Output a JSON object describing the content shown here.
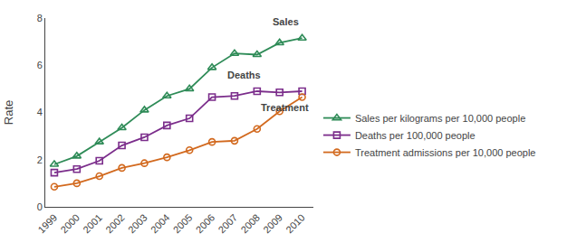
{
  "chart_data": {
    "type": "line",
    "x": [
      1999,
      2000,
      2001,
      2002,
      2003,
      2004,
      2005,
      2006,
      2007,
      2008,
      2009,
      2010
    ],
    "series": [
      {
        "name": "Sales per kilograms per 10,000 people",
        "color": "#2e8b57",
        "marker": "triangle-up",
        "values": [
          1.8,
          2.15,
          2.75,
          3.35,
          4.1,
          4.7,
          5.0,
          5.9,
          6.5,
          6.45,
          6.95,
          7.15
        ]
      },
      {
        "name": "Deaths per 100,000 people",
        "color": "#7b2d8b",
        "marker": "square",
        "values": [
          1.45,
          1.6,
          1.95,
          2.6,
          2.95,
          3.45,
          3.75,
          4.65,
          4.7,
          4.9,
          4.85,
          4.9
        ]
      },
      {
        "name": "Treatment admissions per 10,000 people",
        "color": "#d2691e",
        "marker": "circle",
        "values": [
          0.85,
          1.0,
          1.3,
          1.65,
          1.85,
          2.1,
          2.4,
          2.75,
          2.8,
          3.3,
          4.05,
          4.65
        ]
      }
    ],
    "annotations": [
      {
        "text": "Sales",
        "x": 2008.6,
        "y": 7.55
      },
      {
        "text": "Deaths",
        "x": 2006.6,
        "y": 5.3
      },
      {
        "text": "Treatment",
        "x": 2008.1,
        "y": 3.9
      }
    ],
    "ylabel": "Rate",
    "xlim": [
      1998.6,
      2010.5
    ],
    "xticks": [
      1999,
      2000,
      2001,
      2002,
      2003,
      2004,
      2005,
      2006,
      2007,
      2008,
      2009,
      2010
    ],
    "ylim": [
      0,
      8
    ],
    "yticks": [
      0,
      2,
      4,
      6,
      8
    ],
    "grid": false,
    "legend": "right"
  }
}
